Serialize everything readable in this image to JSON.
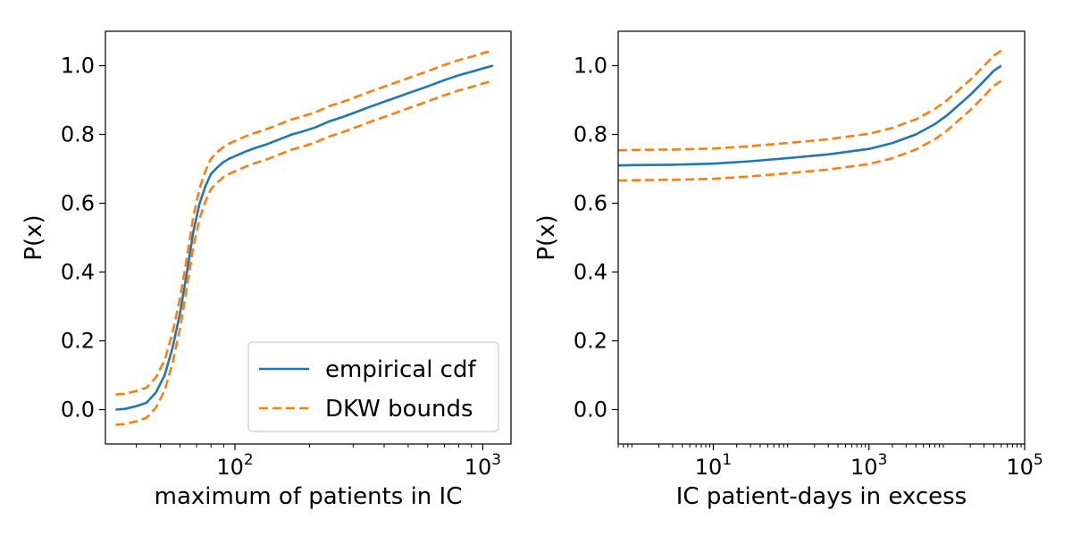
{
  "chart_data": [
    {
      "type": "line",
      "xscale": "log",
      "xlim": [
        30,
        1300
      ],
      "ylim": [
        -0.1,
        1.1
      ],
      "xlabel": "maximum of patients in IC",
      "ylabel": "P(x)",
      "xticks": [
        {
          "base": "10",
          "exp": "2",
          "value": 100
        },
        {
          "base": "10",
          "exp": "3",
          "value": 1000
        }
      ],
      "yticks": [
        "0.0",
        "0.2",
        "0.4",
        "0.6",
        "0.8",
        "1.0"
      ],
      "legend": {
        "position": "bottom-right"
      },
      "series": [
        {
          "name": "empirical cdf",
          "color": "#1f77b4",
          "style": "solid",
          "x": [
            33,
            36,
            40,
            44,
            48,
            52,
            56,
            60,
            64,
            68,
            72,
            76,
            80,
            85,
            90,
            95,
            100,
            110,
            120,
            135,
            150,
            170,
            190,
            210,
            240,
            270,
            300,
            350,
            400,
            450,
            500,
            600,
            700,
            800,
            900,
            1000,
            1100
          ],
          "y": [
            0.0,
            0.002,
            0.01,
            0.02,
            0.05,
            0.1,
            0.18,
            0.28,
            0.4,
            0.52,
            0.6,
            0.65,
            0.685,
            0.705,
            0.72,
            0.73,
            0.737,
            0.75,
            0.76,
            0.772,
            0.785,
            0.8,
            0.81,
            0.82,
            0.838,
            0.85,
            0.862,
            0.88,
            0.895,
            0.908,
            0.92,
            0.94,
            0.958,
            0.972,
            0.982,
            0.992,
            1.0
          ]
        },
        {
          "name": "DKW bounds",
          "color": "#ff7f0e",
          "style": "dashed",
          "x": [
            33,
            36,
            40,
            44,
            48,
            52,
            56,
            60,
            64,
            68,
            72,
            76,
            80,
            85,
            90,
            95,
            100,
            110,
            120,
            135,
            150,
            170,
            190,
            210,
            240,
            270,
            300,
            350,
            400,
            450,
            500,
            600,
            700,
            800,
            900,
            1000,
            1100
          ],
          "y": [
            0.044,
            0.046,
            0.054,
            0.064,
            0.094,
            0.144,
            0.224,
            0.324,
            0.444,
            0.564,
            0.644,
            0.694,
            0.729,
            0.749,
            0.764,
            0.774,
            0.781,
            0.794,
            0.804,
            0.816,
            0.829,
            0.844,
            0.854,
            0.864,
            0.882,
            0.894,
            0.906,
            0.924,
            0.939,
            0.952,
            0.964,
            0.984,
            1.002,
            1.016,
            1.026,
            1.036,
            1.044
          ]
        },
        {
          "name": "",
          "color": "#ff7f0e",
          "style": "dashed",
          "x": [
            33,
            36,
            40,
            44,
            48,
            52,
            56,
            60,
            64,
            68,
            72,
            76,
            80,
            85,
            90,
            95,
            100,
            110,
            120,
            135,
            150,
            170,
            190,
            210,
            240,
            270,
            300,
            350,
            400,
            450,
            500,
            600,
            700,
            800,
            900,
            1000,
            1100
          ],
          "y": [
            -0.044,
            -0.042,
            -0.034,
            -0.024,
            0.006,
            0.056,
            0.136,
            0.236,
            0.356,
            0.476,
            0.556,
            0.606,
            0.641,
            0.661,
            0.676,
            0.686,
            0.693,
            0.706,
            0.716,
            0.728,
            0.741,
            0.756,
            0.766,
            0.776,
            0.794,
            0.806,
            0.818,
            0.836,
            0.851,
            0.864,
            0.876,
            0.896,
            0.914,
            0.928,
            0.938,
            0.948,
            0.956
          ]
        }
      ]
    },
    {
      "type": "line",
      "xscale": "log",
      "xlim": [
        0.6,
        100000
      ],
      "ylim": [
        -0.1,
        1.1
      ],
      "xlabel": "IC patient-days in excess",
      "ylabel": "P(x)",
      "xticks": [
        {
          "base": "10",
          "exp": "1",
          "value": 10
        },
        {
          "base": "10",
          "exp": "3",
          "value": 1000
        },
        {
          "base": "10",
          "exp": "5",
          "value": 100000
        }
      ],
      "yticks": [
        "0.0",
        "0.2",
        "0.4",
        "0.6",
        "0.8",
        "1.0"
      ],
      "series": [
        {
          "name": "empirical cdf",
          "color": "#1f77b4",
          "style": "solid",
          "x": [
            0.6,
            1,
            3,
            10,
            30,
            100,
            300,
            1000,
            2000,
            4000,
            7000,
            10000,
            15000,
            20000,
            30000,
            40000,
            50000
          ],
          "y": [
            0.71,
            0.711,
            0.712,
            0.715,
            0.722,
            0.732,
            0.742,
            0.758,
            0.775,
            0.8,
            0.83,
            0.855,
            0.89,
            0.915,
            0.955,
            0.985,
            1.0
          ]
        },
        {
          "name": "DKW bounds",
          "color": "#ff7f0e",
          "style": "dashed",
          "x": [
            0.6,
            1,
            3,
            10,
            30,
            100,
            300,
            1000,
            2000,
            4000,
            7000,
            10000,
            15000,
            20000,
            30000,
            40000,
            50000
          ],
          "y": [
            0.754,
            0.755,
            0.756,
            0.759,
            0.766,
            0.776,
            0.786,
            0.802,
            0.819,
            0.844,
            0.874,
            0.899,
            0.934,
            0.959,
            0.999,
            1.029,
            1.044
          ]
        },
        {
          "name": "",
          "color": "#ff7f0e",
          "style": "dashed",
          "x": [
            0.6,
            1,
            3,
            10,
            30,
            100,
            300,
            1000,
            2000,
            4000,
            7000,
            10000,
            15000,
            20000,
            30000,
            40000,
            50000
          ],
          "y": [
            0.666,
            0.667,
            0.668,
            0.671,
            0.678,
            0.688,
            0.698,
            0.714,
            0.731,
            0.756,
            0.786,
            0.811,
            0.846,
            0.871,
            0.911,
            0.941,
            0.956
          ]
        }
      ]
    }
  ]
}
